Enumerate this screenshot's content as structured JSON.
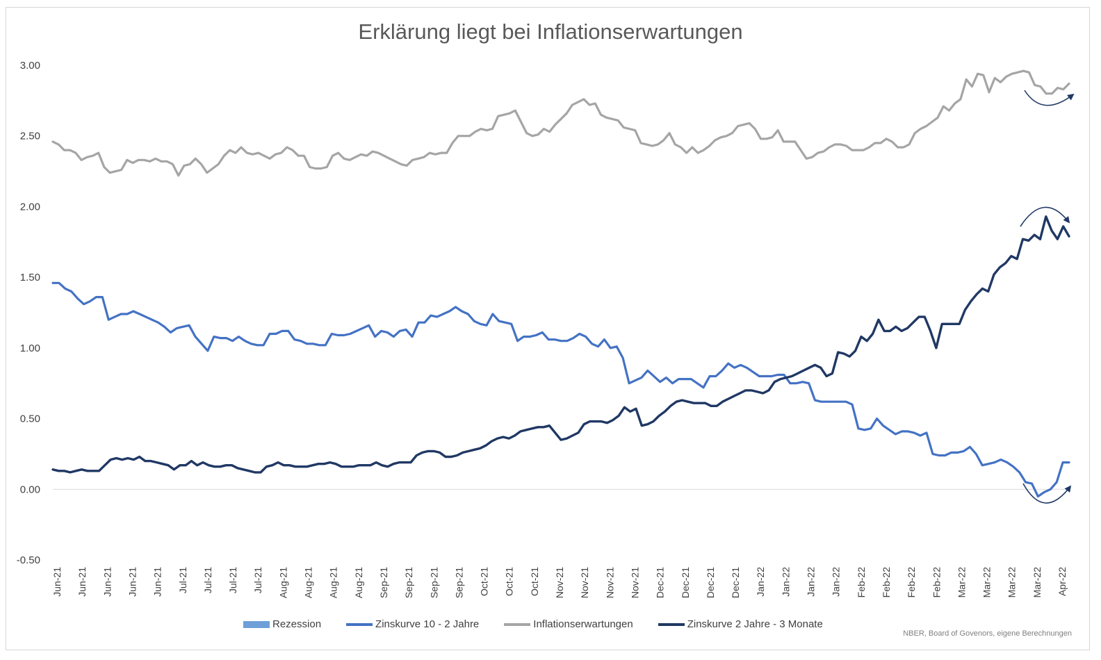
{
  "chart_data": {
    "type": "line",
    "title": "Erklärung liegt bei Inflationserwartungen",
    "source": "NBER, Board of Govenors, eigene Berechnungen",
    "ylim": [
      -0.5,
      3.0
    ],
    "yticks": [
      "3.00",
      "2.50",
      "2.00",
      "1.50",
      "1.00",
      "0.50",
      "0.00",
      "-0.50"
    ],
    "yticks_values": [
      3.0,
      2.5,
      2.0,
      1.5,
      1.0,
      0.5,
      0.0,
      -0.5
    ],
    "grid": false,
    "legend_position": "bottom",
    "x_tick_labels": [
      "Jun-21",
      "Jun-21",
      "Jun-21",
      "Jun-21",
      "Jul-21",
      "Jul-21",
      "Jul-21",
      "Jul-21",
      "Aug-21",
      "Aug-21",
      "Aug-21",
      "Aug-21",
      "Sep-21",
      "Sep-21",
      "Sep-21",
      "Sep-21",
      "Oct-21",
      "Oct-21",
      "Oct-21",
      "Nov-21",
      "Nov-21",
      "Nov-21",
      "Nov-21",
      "Dec-21",
      "Dec-21",
      "Dec-21",
      "Dec-21",
      "Jan-22",
      "Jan-22",
      "Jan-22",
      "Jan-22",
      "Feb-22",
      "Feb-22",
      "Feb-22",
      "Feb-22",
      "Mar-22",
      "Mar-22",
      "Mar-22",
      "Mar-22",
      "Apr-22"
    ],
    "x_tick_display": [
      "Jun-21",
      "Jun-21",
      "Jun-21",
      "Jun-21",
      "Jun-21",
      "Jul-21",
      "Jul-21",
      "Jul-21",
      "Jul-21",
      "Aug-21",
      "Aug-21",
      "Aug-21",
      "Aug-21",
      "Sep-21",
      "Sep-21",
      "Sep-21",
      "Sep-21",
      "Oct-21",
      "Oct-21",
      "Oct-21",
      "Nov-21",
      "Nov-21",
      "Nov-21",
      "Nov-21",
      "Dec-21",
      "Dec-21",
      "Dec-21",
      "Dec-21",
      "Jan-22",
      "Jan-22",
      "Jan-22",
      "Jan-22",
      "Feb-22",
      "Feb-22",
      "Feb-22",
      "Feb-22",
      "Mar-22",
      "Mar-22",
      "Mar-22",
      "Mar-22",
      "Apr-22"
    ],
    "series": [
      {
        "name": "Rezession",
        "color": "#6f9fd8",
        "style": "area",
        "values": []
      },
      {
        "name": "Zinskurve 10 - 2 Jahre",
        "color": "#4472c4",
        "style": "line",
        "values": [
          1.46,
          1.46,
          1.42,
          1.4,
          1.35,
          1.31,
          1.33,
          1.36,
          1.36,
          1.2,
          1.22,
          1.24,
          1.24,
          1.26,
          1.24,
          1.22,
          1.2,
          1.18,
          1.15,
          1.11,
          1.14,
          1.15,
          1.16,
          1.08,
          1.03,
          0.98,
          1.08,
          1.07,
          1.07,
          1.05,
          1.08,
          1.05,
          1.03,
          1.02,
          1.02,
          1.1,
          1.1,
          1.12,
          1.12,
          1.06,
          1.05,
          1.03,
          1.03,
          1.02,
          1.02,
          1.1,
          1.09,
          1.09,
          1.1,
          1.12,
          1.14,
          1.16,
          1.08,
          1.12,
          1.11,
          1.08,
          1.12,
          1.13,
          1.08,
          1.18,
          1.18,
          1.23,
          1.22,
          1.24,
          1.26,
          1.29,
          1.26,
          1.24,
          1.19,
          1.17,
          1.16,
          1.24,
          1.19,
          1.18,
          1.17,
          1.05,
          1.08,
          1.08,
          1.09,
          1.11,
          1.06,
          1.06,
          1.05,
          1.05,
          1.07,
          1.1,
          1.08,
          1.03,
          1.01,
          1.06,
          1.0,
          1.01,
          0.93,
          0.75,
          0.77,
          0.79,
          0.84,
          0.8,
          0.76,
          0.79,
          0.75,
          0.78,
          0.78,
          0.78,
          0.75,
          0.72,
          0.8,
          0.8,
          0.84,
          0.89,
          0.86,
          0.88,
          0.86,
          0.83,
          0.8,
          0.8,
          0.8,
          0.81,
          0.81,
          0.75,
          0.75,
          0.76,
          0.75,
          0.63,
          0.62,
          0.62,
          0.62,
          0.62,
          0.62,
          0.6,
          0.43,
          0.42,
          0.43,
          0.5,
          0.45,
          0.42,
          0.39,
          0.41,
          0.41,
          0.4,
          0.38,
          0.4,
          0.25,
          0.24,
          0.24,
          0.26,
          0.26,
          0.27,
          0.3,
          0.25,
          0.17,
          0.18,
          0.19,
          0.21,
          0.19,
          0.16,
          0.12,
          0.05,
          0.04,
          -0.05,
          -0.02,
          0.0,
          0.05,
          0.19,
          0.19
        ]
      },
      {
        "name": "Inflationserwartungen",
        "color": "#a5a5a5",
        "style": "line",
        "values": [
          2.46,
          2.44,
          2.4,
          2.4,
          2.38,
          2.33,
          2.35,
          2.36,
          2.38,
          2.28,
          2.24,
          2.25,
          2.26,
          2.33,
          2.31,
          2.33,
          2.33,
          2.32,
          2.34,
          2.32,
          2.32,
          2.3,
          2.22,
          2.29,
          2.3,
          2.34,
          2.3,
          2.24,
          2.27,
          2.3,
          2.36,
          2.4,
          2.38,
          2.42,
          2.38,
          2.37,
          2.38,
          2.36,
          2.34,
          2.37,
          2.38,
          2.42,
          2.4,
          2.36,
          2.36,
          2.28,
          2.27,
          2.27,
          2.28,
          2.36,
          2.38,
          2.34,
          2.33,
          2.35,
          2.37,
          2.36,
          2.39,
          2.38,
          2.36,
          2.34,
          2.32,
          2.3,
          2.29,
          2.33,
          2.34,
          2.35,
          2.38,
          2.37,
          2.38,
          2.38,
          2.45,
          2.5,
          2.5,
          2.5,
          2.53,
          2.55,
          2.54,
          2.55,
          2.64,
          2.65,
          2.66,
          2.68,
          2.6,
          2.52,
          2.5,
          2.51,
          2.55,
          2.53,
          2.58,
          2.62,
          2.66,
          2.72,
          2.74,
          2.76,
          2.72,
          2.73,
          2.65,
          2.63,
          2.62,
          2.61,
          2.56,
          2.55,
          2.54,
          2.45,
          2.44,
          2.43,
          2.44,
          2.47,
          2.52,
          2.44,
          2.42,
          2.38,
          2.42,
          2.38,
          2.4,
          2.43,
          2.47,
          2.49,
          2.5,
          2.52,
          2.57,
          2.58,
          2.59,
          2.55,
          2.48,
          2.48,
          2.49,
          2.54,
          2.46,
          2.46,
          2.46,
          2.4,
          2.34,
          2.35,
          2.38,
          2.39,
          2.42,
          2.44,
          2.44,
          2.43,
          2.4,
          2.4,
          2.4,
          2.42,
          2.45,
          2.45,
          2.48,
          2.46,
          2.42,
          2.42,
          2.44,
          2.52,
          2.55,
          2.57,
          2.6,
          2.63,
          2.71,
          2.68,
          2.73,
          2.76,
          2.9,
          2.85,
          2.94,
          2.93,
          2.81,
          2.91,
          2.88,
          2.92,
          2.94,
          2.95,
          2.96,
          2.95,
          2.86,
          2.85,
          2.8,
          2.8,
          2.84,
          2.83,
          2.87
        ]
      },
      {
        "name": "Zinskurve 2 Jahre - 3 Monate",
        "color": "#203864",
        "style": "line",
        "values": [
          0.14,
          0.13,
          0.13,
          0.12,
          0.13,
          0.14,
          0.13,
          0.13,
          0.13,
          0.17,
          0.21,
          0.22,
          0.21,
          0.22,
          0.21,
          0.23,
          0.2,
          0.2,
          0.19,
          0.18,
          0.17,
          0.14,
          0.17,
          0.17,
          0.2,
          0.17,
          0.19,
          0.17,
          0.16,
          0.16,
          0.17,
          0.17,
          0.15,
          0.14,
          0.13,
          0.12,
          0.12,
          0.16,
          0.17,
          0.19,
          0.17,
          0.17,
          0.16,
          0.16,
          0.16,
          0.17,
          0.18,
          0.18,
          0.19,
          0.18,
          0.16,
          0.16,
          0.16,
          0.17,
          0.17,
          0.17,
          0.19,
          0.17,
          0.16,
          0.18,
          0.19,
          0.19,
          0.19,
          0.24,
          0.26,
          0.27,
          0.27,
          0.26,
          0.23,
          0.23,
          0.24,
          0.26,
          0.27,
          0.28,
          0.29,
          0.31,
          0.34,
          0.36,
          0.37,
          0.36,
          0.38,
          0.41,
          0.42,
          0.43,
          0.44,
          0.44,
          0.45,
          0.4,
          0.35,
          0.36,
          0.38,
          0.4,
          0.46,
          0.48,
          0.48,
          0.48,
          0.47,
          0.49,
          0.52,
          0.58,
          0.55,
          0.57,
          0.45,
          0.46,
          0.48,
          0.52,
          0.55,
          0.59,
          0.62,
          0.63,
          0.62,
          0.61,
          0.61,
          0.61,
          0.59,
          0.59,
          0.62,
          0.64,
          0.66,
          0.68,
          0.7,
          0.7,
          0.69,
          0.68,
          0.7,
          0.76,
          0.78,
          0.79,
          0.8,
          0.82,
          0.84,
          0.86,
          0.88,
          0.86,
          0.8,
          0.82,
          0.97,
          0.96,
          0.94,
          0.98,
          1.08,
          1.05,
          1.1,
          1.2,
          1.12,
          1.12,
          1.15,
          1.12,
          1.14,
          1.18,
          1.22,
          1.22,
          1.12,
          1.0,
          1.17,
          1.17,
          1.17,
          1.17,
          1.27,
          1.33,
          1.38,
          1.42,
          1.4,
          1.52,
          1.57,
          1.6,
          1.65,
          1.63,
          1.77,
          1.76,
          1.8,
          1.77,
          1.93,
          1.83,
          1.77,
          1.86,
          1.79
        ]
      }
    ],
    "annotations": [
      {
        "type": "arrow",
        "target_series": "Inflationserwartungen",
        "shape": "dip-up"
      },
      {
        "type": "arrow",
        "target_series": "Zinskurve 2 Jahre - 3 Monate",
        "shape": "arc-down"
      },
      {
        "type": "arrow",
        "target_series": "Zinskurve 10 - 2 Jahre",
        "shape": "dip-up"
      }
    ]
  }
}
